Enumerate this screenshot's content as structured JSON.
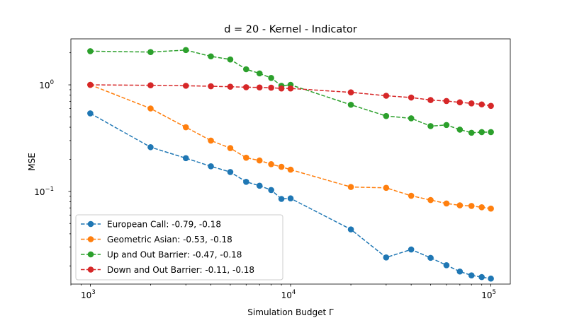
{
  "chart_data": {
    "type": "line",
    "title": "d = 20 - Kernel - Indicator",
    "xlabel": "Simulation Budget Γ",
    "ylabel": "MSE",
    "xscale": "log",
    "yscale": "log",
    "xlim": [
      800,
      125000
    ],
    "ylim": [
      0.0135,
      2.7
    ],
    "grid": false,
    "legend_loc": "lower-left",
    "xticks": [
      {
        "value": 1000,
        "base": "10",
        "exp": "3"
      },
      {
        "value": 10000,
        "base": "10",
        "exp": "4"
      },
      {
        "value": 100000,
        "base": "10",
        "exp": "5"
      }
    ],
    "yticks": [
      {
        "value": 0.1,
        "base": "10",
        "exp": "−1"
      },
      {
        "value": 1,
        "base": "10",
        "exp": "0"
      }
    ],
    "x": [
      1000,
      2000,
      3000,
      4000,
      5000,
      6000,
      7000,
      8000,
      9000,
      10000,
      20000,
      30000,
      40000,
      50000,
      60000,
      70000,
      80000,
      90000,
      100000
    ],
    "series": [
      {
        "name": "European Call: -0.79, -0.18",
        "color": "#1f77b4",
        "values": [
          0.54,
          0.26,
          0.205,
          0.172,
          0.152,
          0.123,
          0.113,
          0.103,
          0.085,
          0.086,
          0.044,
          0.024,
          0.0285,
          0.0238,
          0.0203,
          0.0177,
          0.0163,
          0.0157,
          0.0152
        ]
      },
      {
        "name": "Geometric Asian: -0.53, -0.18",
        "color": "#ff7f0e",
        "values": [
          1.0,
          0.6,
          0.4,
          0.3,
          0.255,
          0.207,
          0.195,
          0.18,
          0.17,
          0.16,
          0.11,
          0.108,
          0.091,
          0.083,
          0.077,
          0.074,
          0.073,
          0.071,
          0.069
        ]
      },
      {
        "name": "Up and Out Barrier: -0.47, -0.18",
        "color": "#2ca02c",
        "values": [
          2.07,
          2.03,
          2.12,
          1.85,
          1.73,
          1.4,
          1.28,
          1.16,
          0.98,
          1.0,
          0.65,
          0.51,
          0.485,
          0.41,
          0.42,
          0.38,
          0.355,
          0.36,
          0.36
        ]
      },
      {
        "name": "Down and Out Barrier: -0.11, -0.18",
        "color": "#d62728",
        "values": [
          1.0,
          0.99,
          0.98,
          0.97,
          0.96,
          0.95,
          0.945,
          0.94,
          0.925,
          0.925,
          0.85,
          0.79,
          0.76,
          0.72,
          0.705,
          0.685,
          0.67,
          0.655,
          0.635
        ]
      }
    ]
  }
}
